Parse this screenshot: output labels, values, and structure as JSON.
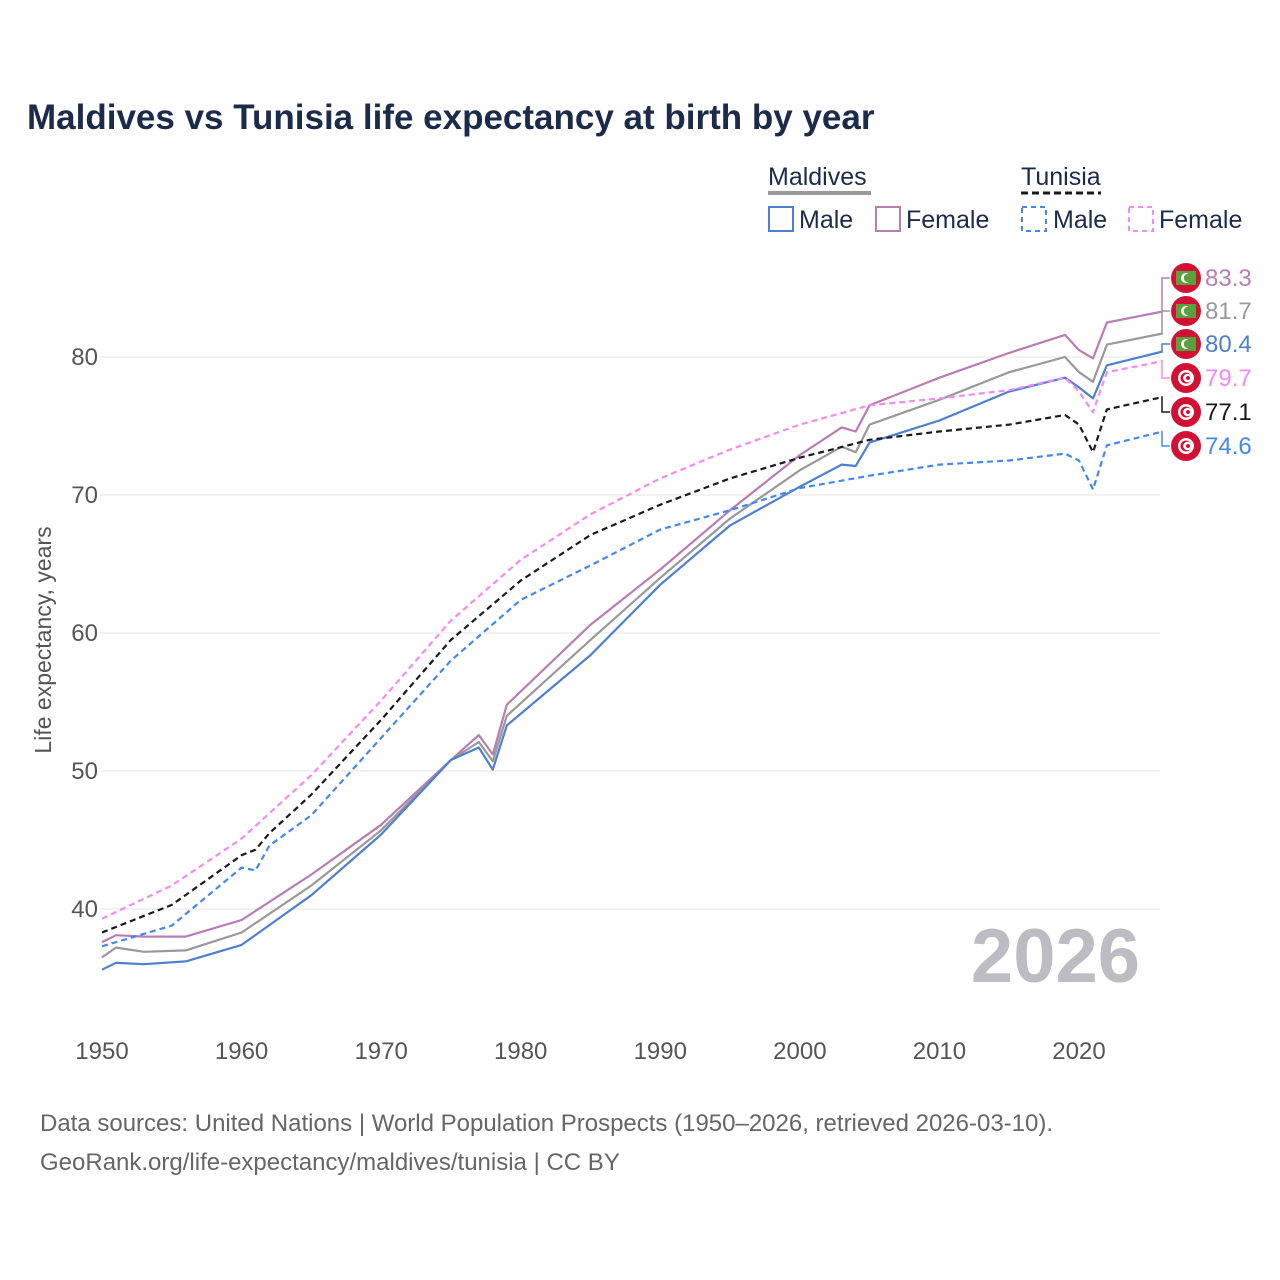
{
  "chart_data": {
    "type": "line",
    "title": "Maldives vs Tunisia life expectancy at birth by year",
    "xlabel": "",
    "ylabel": "Life expectancy, years",
    "xlim": [
      1950,
      2026
    ],
    "ylim": [
      33,
      86
    ],
    "x_ticks": [
      "1950",
      "1960",
      "1970",
      "1980",
      "1990",
      "2000",
      "2010",
      "2020"
    ],
    "y_ticks": [
      "40",
      "50",
      "60",
      "70",
      "80"
    ],
    "grid": true,
    "year_watermark": "2026",
    "legend": {
      "placement": "top-right",
      "groups": [
        {
          "name": "Maldives",
          "items": [
            "Male",
            "Female"
          ]
        },
        {
          "name": "Tunisia",
          "items": [
            "Male",
            "Female"
          ]
        }
      ]
    },
    "series": [
      {
        "name": "Maldives Female",
        "country": "Maldives",
        "color": "#b87db4",
        "dashed": false,
        "end_label": "83.3",
        "points": [
          [
            1950,
            37.6
          ],
          [
            1951,
            38.1
          ],
          [
            1953,
            38.0
          ],
          [
            1956,
            38.0
          ],
          [
            1960,
            39.2
          ],
          [
            1965,
            42.5
          ],
          [
            1970,
            46.1
          ],
          [
            1975,
            50.8
          ],
          [
            1977,
            52.6
          ],
          [
            1978,
            51.2
          ],
          [
            1979,
            54.8
          ],
          [
            1985,
            60.6
          ],
          [
            1990,
            64.6
          ],
          [
            1995,
            68.9
          ],
          [
            2000,
            72.9
          ],
          [
            2003,
            74.9
          ],
          [
            2004,
            74.6
          ],
          [
            2005,
            76.5
          ],
          [
            2010,
            78.5
          ],
          [
            2015,
            80.3
          ],
          [
            2019,
            81.6
          ],
          [
            2020,
            80.5
          ],
          [
            2021,
            79.9
          ],
          [
            2022,
            82.5
          ],
          [
            2026,
            83.3
          ]
        ]
      },
      {
        "name": "Maldives",
        "country": "Maldives",
        "color": "#999999",
        "dashed": false,
        "end_label": "81.7",
        "points": [
          [
            1950,
            36.5
          ],
          [
            1951,
            37.2
          ],
          [
            1953,
            36.9
          ],
          [
            1956,
            37.0
          ],
          [
            1960,
            38.3
          ],
          [
            1965,
            41.7
          ],
          [
            1970,
            45.7
          ],
          [
            1975,
            50.8
          ],
          [
            1977,
            52.1
          ],
          [
            1978,
            50.7
          ],
          [
            1979,
            54.0
          ],
          [
            1985,
            59.5
          ],
          [
            1990,
            64.0
          ],
          [
            1995,
            68.3
          ],
          [
            2000,
            71.8
          ],
          [
            2003,
            73.5
          ],
          [
            2004,
            73.1
          ],
          [
            2005,
            75.1
          ],
          [
            2010,
            76.9
          ],
          [
            2015,
            78.9
          ],
          [
            2019,
            80.0
          ],
          [
            2020,
            78.9
          ],
          [
            2021,
            78.2
          ],
          [
            2022,
            80.9
          ],
          [
            2026,
            81.7
          ]
        ]
      },
      {
        "name": "Maldives Male",
        "country": "Maldives",
        "color": "#4f7fcf",
        "dashed": false,
        "end_label": "80.4",
        "points": [
          [
            1950,
            35.6
          ],
          [
            1951,
            36.1
          ],
          [
            1953,
            36.0
          ],
          [
            1956,
            36.2
          ],
          [
            1960,
            37.4
          ],
          [
            1965,
            41.0
          ],
          [
            1970,
            45.4
          ],
          [
            1975,
            50.8
          ],
          [
            1977,
            51.7
          ],
          [
            1978,
            50.1
          ],
          [
            1979,
            53.3
          ],
          [
            1985,
            58.4
          ],
          [
            1990,
            63.5
          ],
          [
            1995,
            67.8
          ],
          [
            2000,
            70.6
          ],
          [
            2003,
            72.2
          ],
          [
            2004,
            72.1
          ],
          [
            2005,
            73.8
          ],
          [
            2010,
            75.4
          ],
          [
            2015,
            77.5
          ],
          [
            2019,
            78.5
          ],
          [
            2020,
            77.8
          ],
          [
            2021,
            77.0
          ],
          [
            2022,
            79.4
          ],
          [
            2026,
            80.4
          ]
        ]
      },
      {
        "name": "Tunisia Female",
        "country": "Tunisia",
        "color": "#f58af0",
        "dashed": true,
        "end_label": "79.7",
        "points": [
          [
            1950,
            39.3
          ],
          [
            1955,
            41.7
          ],
          [
            1960,
            45.1
          ],
          [
            1965,
            49.7
          ],
          [
            1970,
            55.1
          ],
          [
            1975,
            60.9
          ],
          [
            1980,
            65.3
          ],
          [
            1985,
            68.6
          ],
          [
            1990,
            71.2
          ],
          [
            1995,
            73.3
          ],
          [
            2000,
            75.1
          ],
          [
            2005,
            76.5
          ],
          [
            2010,
            77.0
          ],
          [
            2015,
            77.6
          ],
          [
            2019,
            78.5
          ],
          [
            2020,
            77.5
          ],
          [
            2021,
            76.0
          ],
          [
            2022,
            78.9
          ],
          [
            2026,
            79.7
          ]
        ]
      },
      {
        "name": "Tunisia",
        "country": "Tunisia",
        "color": "#1a1a1a",
        "dashed": true,
        "end_label": "77.1",
        "points": [
          [
            1950,
            38.3
          ],
          [
            1955,
            40.3
          ],
          [
            1960,
            43.9
          ],
          [
            1961,
            44.3
          ],
          [
            1962,
            45.5
          ],
          [
            1965,
            48.3
          ],
          [
            1970,
            53.7
          ],
          [
            1975,
            59.5
          ],
          [
            1980,
            63.8
          ],
          [
            1985,
            67.1
          ],
          [
            1990,
            69.3
          ],
          [
            1995,
            71.2
          ],
          [
            2000,
            72.7
          ],
          [
            2005,
            74.0
          ],
          [
            2010,
            74.6
          ],
          [
            2015,
            75.1
          ],
          [
            2019,
            75.8
          ],
          [
            2020,
            75.1
          ],
          [
            2021,
            73.1
          ],
          [
            2022,
            76.2
          ],
          [
            2026,
            77.1
          ]
        ]
      },
      {
        "name": "Tunisia Male",
        "country": "Tunisia",
        "color": "#4488ee",
        "dashed": true,
        "end_label": "74.6",
        "points": [
          [
            1950,
            37.3
          ],
          [
            1955,
            38.8
          ],
          [
            1960,
            43.0
          ],
          [
            1961,
            42.8
          ],
          [
            1962,
            44.6
          ],
          [
            1965,
            46.8
          ],
          [
            1970,
            52.4
          ],
          [
            1975,
            58.0
          ],
          [
            1980,
            62.4
          ],
          [
            1985,
            64.9
          ],
          [
            1990,
            67.5
          ],
          [
            1995,
            68.9
          ],
          [
            2000,
            70.5
          ],
          [
            2005,
            71.4
          ],
          [
            2010,
            72.2
          ],
          [
            2015,
            72.5
          ],
          [
            2019,
            73.0
          ],
          [
            2020,
            72.5
          ],
          [
            2021,
            70.4
          ],
          [
            2022,
            73.6
          ],
          [
            2026,
            74.6
          ]
        ]
      }
    ]
  },
  "footer": {
    "source_line": "Data sources: United Nations | World Population Prospects (1950–2026, retrieved 2026-03-10).",
    "url_line": "GeoRank.org/life-expectancy/maldives/tunisia | CC BY"
  }
}
